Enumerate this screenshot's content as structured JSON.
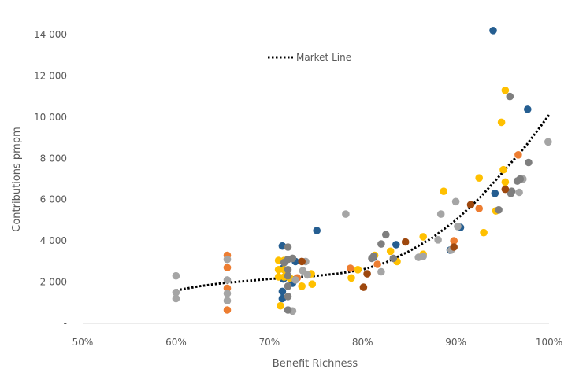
{
  "chart_data": {
    "type": "scatter",
    "title": "",
    "xlabel": "Benefit  Richness",
    "ylabel": "Contributions pmpm",
    "xlim": [
      50,
      100
    ],
    "ylim": [
      0,
      14000
    ],
    "x_ticks": [
      "50%",
      "60%",
      "70%",
      "80%",
      "90%",
      "100%"
    ],
    "x_tick_values": [
      50,
      60,
      70,
      80,
      90,
      100
    ],
    "y_ticks": [
      "-",
      "2 000",
      "4 000",
      "6 000",
      "8 000",
      "10 000",
      "12 000",
      "14 000"
    ],
    "y_tick_values": [
      0,
      2000,
      4000,
      6000,
      8000,
      10000,
      12000,
      14000
    ],
    "grid": false,
    "legend": {
      "placement": "top-left",
      "entries": [
        "Market Line"
      ]
    },
    "trend_line": {
      "name": "Market Line",
      "style": "dotted",
      "color": "#000000",
      "points": [
        [
          60,
          1600
        ],
        [
          62.5,
          1800
        ],
        [
          65,
          1950
        ],
        [
          67.5,
          2050
        ],
        [
          70,
          2150
        ],
        [
          72.5,
          2220
        ],
        [
          75,
          2300
        ],
        [
          77.5,
          2420
        ],
        [
          80,
          2600
        ],
        [
          82.5,
          2950
        ],
        [
          85,
          3500
        ],
        [
          87.5,
          4150
        ],
        [
          90,
          5000
        ],
        [
          92.5,
          6050
        ],
        [
          95,
          7300
        ],
        [
          97.5,
          8600
        ],
        [
          100,
          10100
        ]
      ]
    },
    "series": [
      {
        "color": "#255E91",
        "points": [
          [
            94.0,
            14200
          ],
          [
            97.7,
            10380
          ],
          [
            94.2,
            6300
          ],
          [
            75.1,
            4500
          ],
          [
            71.4,
            3750
          ],
          [
            71.4,
            2650
          ],
          [
            71.5,
            2150
          ],
          [
            71.4,
            1550
          ],
          [
            71.4,
            1200
          ],
          [
            72.5,
            1950
          ],
          [
            72.8,
            3000
          ],
          [
            81.2,
            3200
          ],
          [
            83.6,
            3820
          ],
          [
            89.4,
            3550
          ],
          [
            90.5,
            4650
          ]
        ]
      },
      {
        "color": "#ED7D31",
        "points": [
          [
            65.5,
            3300
          ],
          [
            65.5,
            2700
          ],
          [
            65.5,
            1700
          ],
          [
            65.5,
            650
          ],
          [
            73.0,
            2200
          ],
          [
            78.7,
            2670
          ],
          [
            81.6,
            2860
          ],
          [
            89.8,
            4000
          ],
          [
            92.5,
            5570
          ],
          [
            96.7,
            8170
          ]
        ]
      },
      {
        "color": "#FFC000",
        "points": [
          [
            71.0,
            3050
          ],
          [
            71.6,
            3050
          ],
          [
            71.0,
            2600
          ],
          [
            71.6,
            2600
          ],
          [
            71.0,
            2250
          ],
          [
            71.6,
            2250
          ],
          [
            72.2,
            2200
          ],
          [
            73.5,
            1800
          ],
          [
            74.5,
            2400
          ],
          [
            74.6,
            1900
          ],
          [
            71.2,
            850
          ],
          [
            78.8,
            2200
          ],
          [
            79.5,
            2600
          ],
          [
            81.3,
            3300
          ],
          [
            83.0,
            3500
          ],
          [
            83.7,
            3000
          ],
          [
            86.5,
            3350
          ],
          [
            86.5,
            4200
          ],
          [
            88.7,
            6400
          ],
          [
            92.5,
            7050
          ],
          [
            93.0,
            4400
          ],
          [
            94.3,
            5450
          ],
          [
            94.9,
            9750
          ],
          [
            95.3,
            11300
          ],
          [
            95.1,
            7450
          ],
          [
            95.3,
            6850
          ]
        ]
      },
      {
        "color": "#A5A5A5",
        "points": [
          [
            60.0,
            2300
          ],
          [
            60.0,
            1500
          ],
          [
            60.0,
            1200
          ],
          [
            65.5,
            3100
          ],
          [
            65.5,
            2100
          ],
          [
            65.5,
            1450
          ],
          [
            65.5,
            1100
          ],
          [
            72.5,
            600
          ],
          [
            73.9,
            3000
          ],
          [
            73.6,
            2550
          ],
          [
            74.1,
            2350
          ],
          [
            72.8,
            2100
          ],
          [
            78.2,
            5300
          ],
          [
            82.0,
            2500
          ],
          [
            86.0,
            3200
          ],
          [
            86.5,
            3250
          ],
          [
            88.4,
            5300
          ],
          [
            88.1,
            4050
          ],
          [
            90.0,
            5900
          ],
          [
            90.2,
            4700
          ],
          [
            97.2,
            7000
          ],
          [
            99.9,
            8800
          ],
          [
            96.8,
            6350
          ],
          [
            89.5,
            3550
          ]
        ]
      },
      {
        "color": "#7F7F7F",
        "points": [
          [
            72.0,
            3700
          ],
          [
            72.0,
            3100
          ],
          [
            71.6,
            2950
          ],
          [
            72.0,
            2600
          ],
          [
            72.0,
            2300
          ],
          [
            72.0,
            1800
          ],
          [
            72.0,
            1300
          ],
          [
            72.0,
            650
          ],
          [
            72.5,
            3150
          ],
          [
            81.2,
            3250
          ],
          [
            82.0,
            3850
          ],
          [
            82.5,
            4300
          ],
          [
            81.0,
            3150
          ],
          [
            83.3,
            3150
          ],
          [
            95.8,
            11000
          ],
          [
            97.8,
            7800
          ],
          [
            96.9,
            7000
          ],
          [
            96.6,
            6900
          ],
          [
            96.0,
            6400
          ],
          [
            95.9,
            6300
          ],
          [
            94.6,
            5500
          ]
        ]
      },
      {
        "color": "#9E480E",
        "points": [
          [
            73.5,
            3000
          ],
          [
            80.5,
            2400
          ],
          [
            80.1,
            1750
          ],
          [
            84.6,
            3950
          ],
          [
            89.8,
            3700
          ],
          [
            91.6,
            5750
          ],
          [
            95.3,
            6500
          ]
        ]
      }
    ]
  }
}
